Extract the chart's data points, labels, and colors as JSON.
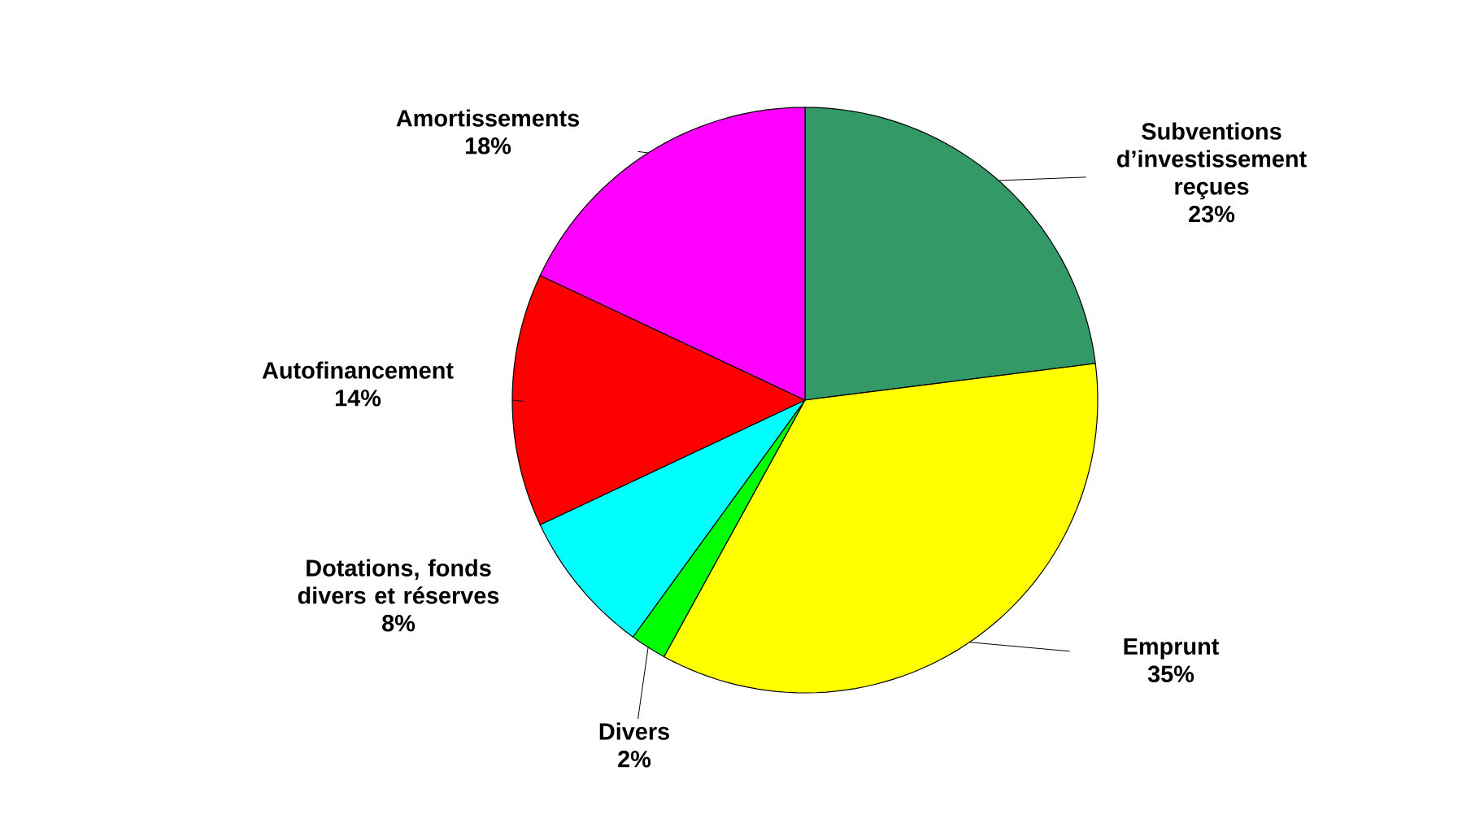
{
  "chart_data": {
    "type": "pie",
    "categories": [
      "Subventions d’investissement reçues",
      "Emprunt",
      "Divers",
      "Dotations, fonds divers et réserves",
      "Autofinancement",
      "Amortissements"
    ],
    "values": [
      23,
      35,
      2,
      8,
      14,
      18
    ],
    "value_labels": [
      "23%",
      "35%",
      "2%",
      "8%",
      "14%",
      "18%"
    ],
    "colors": [
      "#339966",
      "#ffff00",
      "#00ff00",
      "#00ffff",
      "#ff0000",
      "#ff00ff"
    ]
  }
}
